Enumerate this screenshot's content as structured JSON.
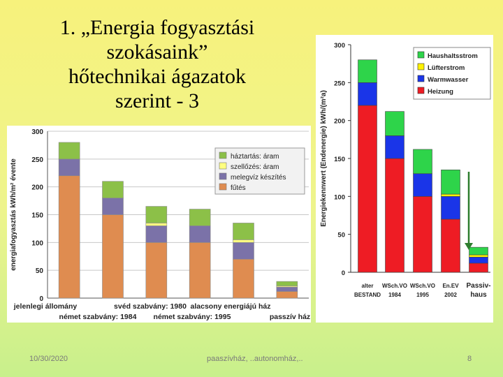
{
  "slide": {
    "title_lines": [
      "1. „Energia fogyasztási",
      "szokásaink”",
      "hőtechnikai ágazatok",
      "szerint - 3"
    ],
    "footer_date": "10/30/2020",
    "footer_center": "paaszívház, ..autonomház,..",
    "footer_page": "8"
  },
  "colors": {
    "left": [
      "#df8c50",
      "#7b72a8",
      "#ffff80",
      "#8cc048"
    ],
    "right": [
      "#ee1c24",
      "#1a35e8",
      "#fff200",
      "#2ed44a"
    ]
  },
  "chart_data": [
    {
      "type": "bar",
      "stacked": true,
      "ylabel": "energiafogyasztás kWh/m² évente",
      "ylim": [
        0,
        300
      ],
      "yticks": [
        0,
        50,
        100,
        150,
        200,
        250,
        300
      ],
      "grid": true,
      "legend_position": "top-right",
      "categories_row1": [
        "jelenlegi állomány",
        "svéd szabvány: 1980",
        "alacsony energiájú ház"
      ],
      "categories_row2": [
        "német szabvány: 1984",
        "német szabvány: 1995",
        "passzív ház"
      ],
      "series": [
        {
          "name": "fűtés",
          "values": [
            220,
            150,
            100,
            100,
            70,
            12
          ]
        },
        {
          "name": "melegvíz készítés",
          "values": [
            30,
            30,
            30,
            30,
            30,
            8
          ]
        },
        {
          "name": "szellőzés: áram",
          "values": [
            0,
            0,
            5,
            0,
            5,
            2
          ]
        },
        {
          "name": "háztartás: áram",
          "values": [
            30,
            30,
            30,
            30,
            30,
            8
          ]
        }
      ]
    },
    {
      "type": "bar",
      "stacked": true,
      "ylabel": "Energiekennwert (Endenergie) kWh/(m²a)",
      "ylim": [
        0,
        300
      ],
      "yticks": [
        0,
        50,
        100,
        150,
        200,
        250,
        300
      ],
      "grid": false,
      "legend_position": "top-right",
      "categories": [
        [
          "alter",
          "BESTAND"
        ],
        [
          "WSch.VO",
          "1984"
        ],
        [
          "WSch.VO",
          "1995"
        ],
        [
          "En.EV",
          "2002"
        ],
        [
          "Passiv-",
          "haus"
        ]
      ],
      "series": [
        {
          "name": "Heizung",
          "values": [
            220,
            150,
            100,
            70,
            12
          ]
        },
        {
          "name": "Warmwasser",
          "values": [
            30,
            30,
            30,
            30,
            8
          ]
        },
        {
          "name": "Lüfterstrom",
          "values": [
            0,
            0,
            0,
            3,
            3
          ]
        },
        {
          "name": "Haushaltsstrom",
          "values": [
            30,
            32,
            32,
            32,
            10
          ]
        }
      ]
    }
  ]
}
